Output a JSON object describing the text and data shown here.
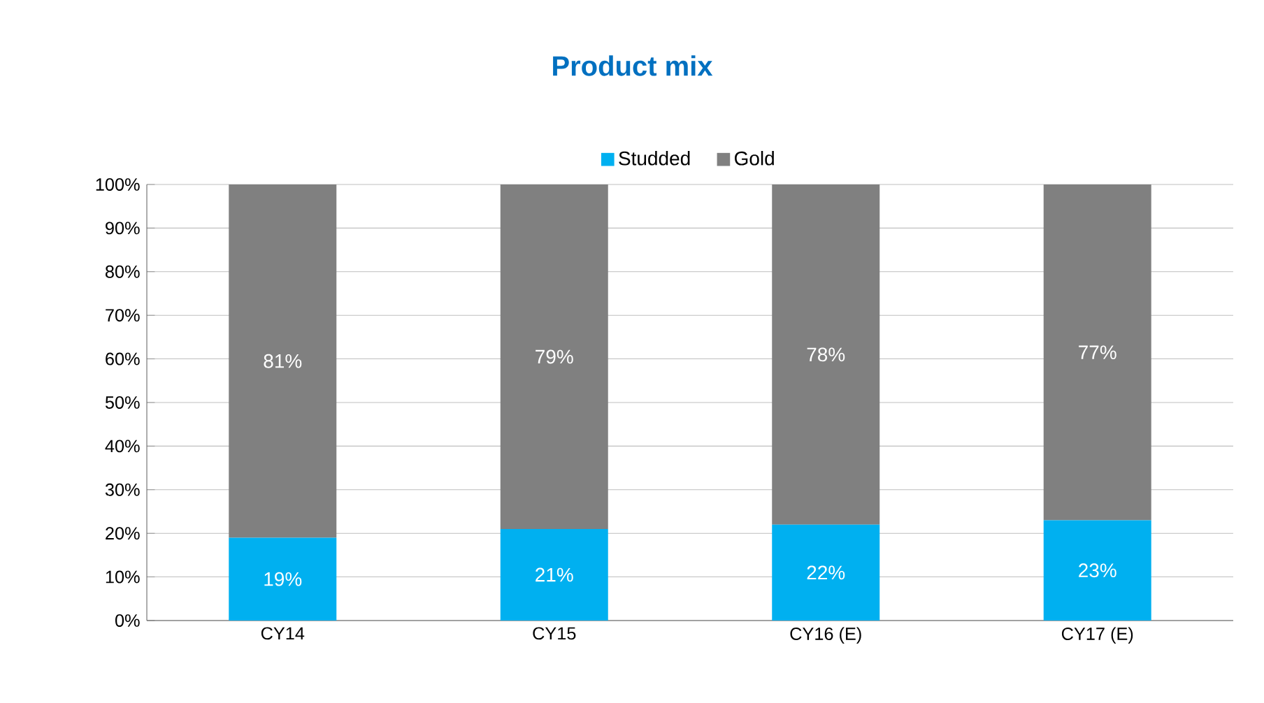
{
  "chart_data": {
    "type": "bar",
    "title": "Product mix",
    "stacked": true,
    "categories": [
      "CY14",
      "CY15",
      "CY16 (E)",
      "CY17 (E)"
    ],
    "series": [
      {
        "name": "Studded",
        "color": "#00b0f0",
        "values": [
          19,
          21,
          22,
          23
        ],
        "value_labels": [
          "19%",
          "21%",
          "22%",
          "23%"
        ]
      },
      {
        "name": "Gold",
        "color": "#808080",
        "values": [
          81,
          79,
          78,
          77
        ],
        "value_labels": [
          "81%",
          "79%",
          "78%",
          "77%"
        ]
      }
    ],
    "ylim": [
      0,
      100
    ],
    "yticks": [
      {
        "value": 0,
        "label": "0%"
      },
      {
        "value": 10,
        "label": "10%"
      },
      {
        "value": 20,
        "label": "20%"
      },
      {
        "value": 30,
        "label": "30%"
      },
      {
        "value": 40,
        "label": "40%"
      },
      {
        "value": 50,
        "label": "50%"
      },
      {
        "value": 60,
        "label": "60%"
      },
      {
        "value": 70,
        "label": "70%"
      },
      {
        "value": 80,
        "label": "80%"
      },
      {
        "value": 90,
        "label": "90%"
      },
      {
        "value": 100,
        "label": "100%"
      }
    ],
    "grid": "y",
    "legend": "top"
  }
}
